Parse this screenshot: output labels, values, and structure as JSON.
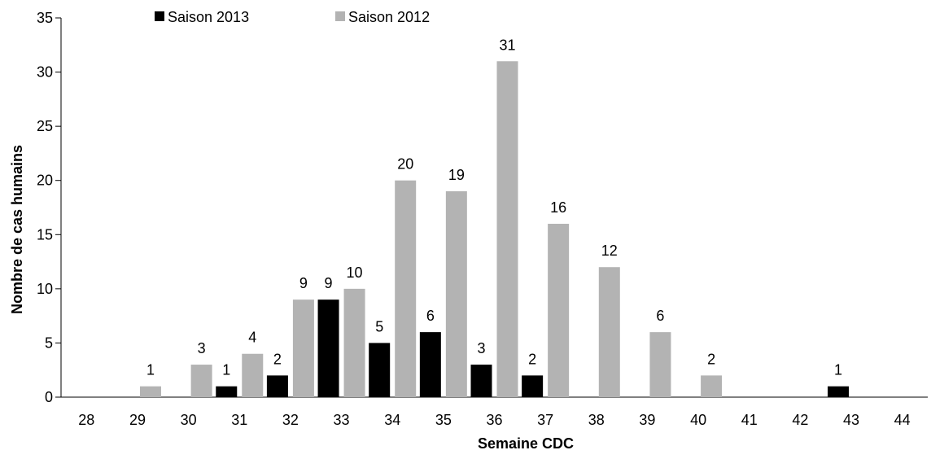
{
  "chart_data": {
    "type": "bar",
    "title": "",
    "xlabel": "Semaine CDC",
    "ylabel": "Nombre de cas humains",
    "ylim": [
      0,
      35
    ],
    "yticks": [
      0,
      5,
      10,
      15,
      20,
      25,
      30,
      35
    ],
    "grid": false,
    "legend_position": "top",
    "categories": [
      "28",
      "29",
      "30",
      "31",
      "32",
      "33",
      "34",
      "35",
      "36",
      "37",
      "38",
      "39",
      "40",
      "41",
      "42",
      "43",
      "44"
    ],
    "series": [
      {
        "name": "Saison 2013",
        "color": "#000000",
        "values": [
          null,
          null,
          null,
          1,
          2,
          9,
          5,
          6,
          3,
          2,
          null,
          null,
          null,
          null,
          null,
          1,
          null
        ]
      },
      {
        "name": "Saison 2012",
        "color": "#b3b3b3",
        "values": [
          null,
          1,
          3,
          4,
          9,
          10,
          20,
          19,
          31,
          16,
          12,
          6,
          2,
          null,
          null,
          null,
          null
        ]
      }
    ]
  }
}
